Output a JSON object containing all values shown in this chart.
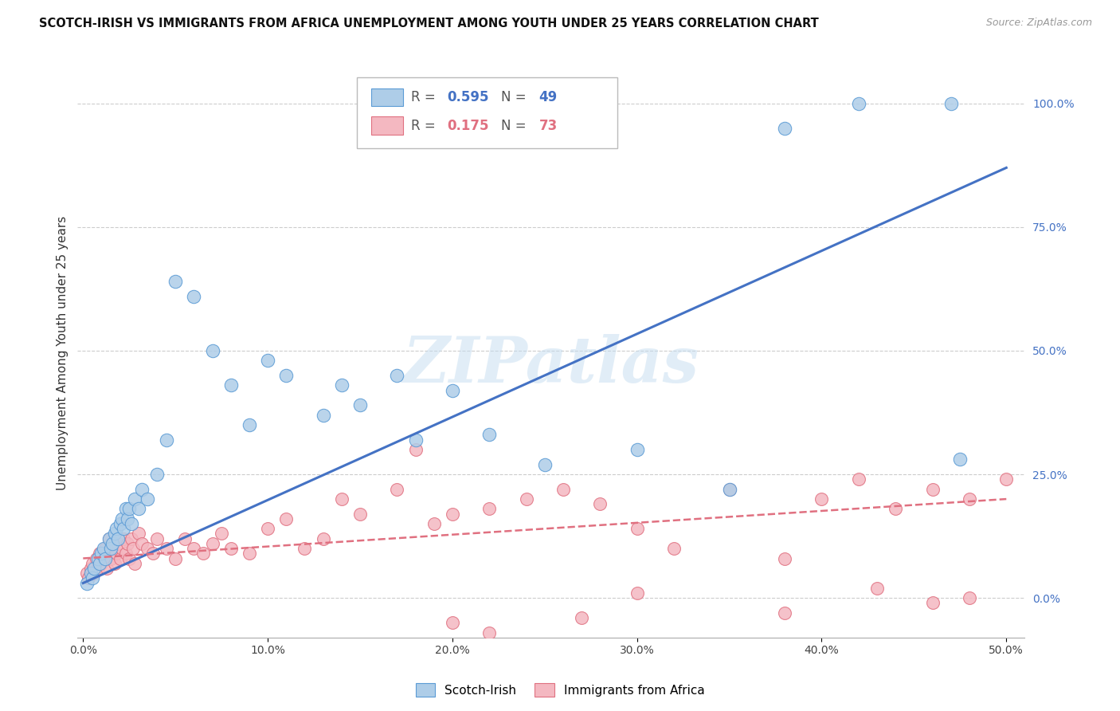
{
  "title": "SCOTCH-IRISH VS IMMIGRANTS FROM AFRICA UNEMPLOYMENT AMONG YOUTH UNDER 25 YEARS CORRELATION CHART",
  "source": "Source: ZipAtlas.com",
  "ylabel": "Unemployment Among Youth under 25 years",
  "ytick_vals": [
    0,
    25,
    50,
    75,
    100
  ],
  "ytick_labels": [
    "0.0%",
    "25.0%",
    "50.0%",
    "75.0%",
    "100.0%"
  ],
  "xtick_vals": [
    0,
    10,
    20,
    30,
    40,
    50
  ],
  "xtick_labels": [
    "0.0%",
    "10.0%",
    "20.0%",
    "30.0%",
    "40.0%",
    "50.0%"
  ],
  "legend_blue_r": "0.595",
  "legend_blue_n": "49",
  "legend_pink_r": "0.175",
  "legend_pink_n": "73",
  "legend_blue_label": "Scotch-Irish",
  "legend_pink_label": "Immigrants from Africa",
  "blue_fill": "#aecde8",
  "blue_edge": "#5b9bd5",
  "pink_fill": "#f4b8c1",
  "pink_edge": "#e07080",
  "blue_line_color": "#4472c4",
  "pink_line_color": "#e07080",
  "watermark": "ZIPatlas",
  "xlim": [
    -0.3,
    51
  ],
  "ylim": [
    -8,
    107
  ],
  "blue_scatter_x": [
    0.2,
    0.4,
    0.5,
    0.6,
    0.8,
    0.9,
    1.0,
    1.1,
    1.2,
    1.4,
    1.5,
    1.6,
    1.7,
    1.8,
    1.9,
    2.0,
    2.1,
    2.2,
    2.3,
    2.4,
    2.5,
    2.6,
    2.8,
    3.0,
    3.2,
    3.5,
    4.0,
    4.5,
    5.0,
    6.0,
    7.0,
    8.0,
    9.0,
    10.0,
    11.0,
    13.0,
    14.0,
    15.0,
    17.0,
    18.0,
    20.0,
    22.0,
    25.0,
    30.0,
    35.0,
    38.0,
    42.0,
    47.0,
    47.5
  ],
  "blue_scatter_y": [
    3,
    5,
    4,
    6,
    8,
    7,
    9,
    10,
    8,
    12,
    10,
    11,
    13,
    14,
    12,
    15,
    16,
    14,
    18,
    16,
    18,
    15,
    20,
    18,
    22,
    20,
    25,
    32,
    64,
    61,
    50,
    43,
    35,
    48,
    45,
    37,
    43,
    39,
    45,
    32,
    42,
    33,
    27,
    30,
    22,
    95,
    100,
    100,
    28
  ],
  "pink_scatter_x": [
    0.2,
    0.3,
    0.4,
    0.5,
    0.6,
    0.7,
    0.8,
    0.9,
    1.0,
    1.1,
    1.2,
    1.3,
    1.4,
    1.5,
    1.6,
    1.7,
    1.8,
    1.9,
    2.0,
    2.1,
    2.2,
    2.3,
    2.4,
    2.5,
    2.6,
    2.7,
    2.8,
    3.0,
    3.2,
    3.5,
    3.8,
    4.0,
    4.5,
    5.0,
    5.5,
    6.0,
    6.5,
    7.0,
    7.5,
    8.0,
    9.0,
    10.0,
    11.0,
    12.0,
    13.0,
    14.0,
    15.0,
    17.0,
    18.0,
    19.0,
    20.0,
    22.0,
    24.0,
    26.0,
    28.0,
    30.0,
    32.0,
    35.0,
    38.0,
    40.0,
    42.0,
    44.0,
    46.0,
    48.0,
    50.0,
    20.0,
    22.0,
    27.0,
    30.0,
    38.0,
    43.0,
    46.0,
    48.0
  ],
  "pink_scatter_y": [
    5,
    4,
    6,
    7,
    5,
    8,
    6,
    9,
    7,
    8,
    10,
    6,
    12,
    8,
    10,
    7,
    9,
    11,
    8,
    10,
    12,
    9,
    11,
    8,
    12,
    10,
    7,
    13,
    11,
    10,
    9,
    12,
    10,
    8,
    12,
    10,
    9,
    11,
    13,
    10,
    9,
    14,
    16,
    10,
    12,
    20,
    17,
    22,
    30,
    15,
    17,
    18,
    20,
    22,
    19,
    14,
    10,
    22,
    8,
    20,
    24,
    18,
    22,
    20,
    24,
    -5,
    -7,
    -4,
    1,
    -3,
    2,
    -1,
    0
  ],
  "blue_line_x": [
    0,
    50
  ],
  "blue_line_y": [
    3,
    87
  ],
  "pink_line_x": [
    0,
    50
  ],
  "pink_line_y": [
    8,
    20
  ]
}
